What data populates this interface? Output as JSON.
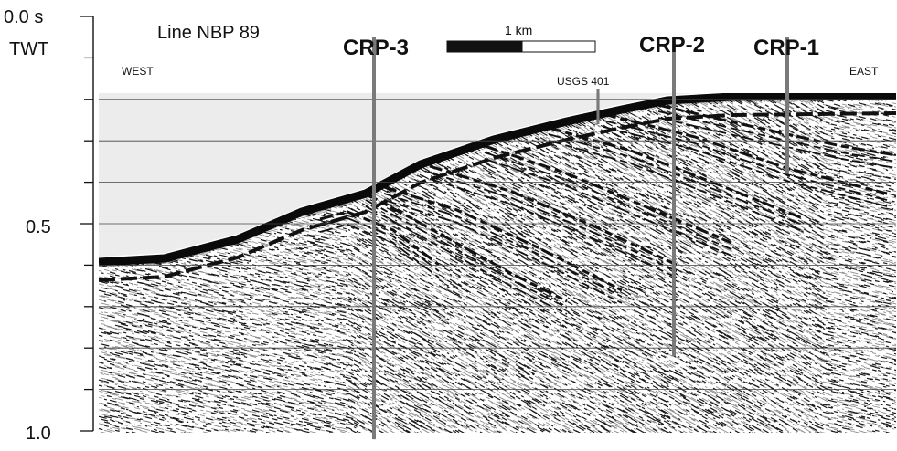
{
  "title": "Line NBP 89",
  "orientation": {
    "west": "WEST",
    "east": "EAST"
  },
  "y_axis": {
    "unit_label": "TWT",
    "ticks": [
      {
        "value": 0.0,
        "label": "0.0 s"
      },
      {
        "value": 0.5,
        "label": "0.5"
      },
      {
        "value": 1.0,
        "label": "1.0"
      }
    ],
    "minor_tick_interval_s": 0.1
  },
  "scale_bar": {
    "label": "1 km"
  },
  "annotation": {
    "label": "USGS 401"
  },
  "boreholes": [
    {
      "name": "CRP-3",
      "twt_top_s": 0.05,
      "twt_bottom_s": 1.02
    },
    {
      "name": "CRP-2",
      "twt_top_s": 0.05,
      "twt_bottom_s": 0.82
    },
    {
      "name": "CRP-1",
      "twt_top_s": 0.05,
      "twt_bottom_s": 0.38
    }
  ],
  "colors": {
    "ink": "#111111",
    "borehole": "#7a7a7a",
    "paper": "#ffffff"
  }
}
